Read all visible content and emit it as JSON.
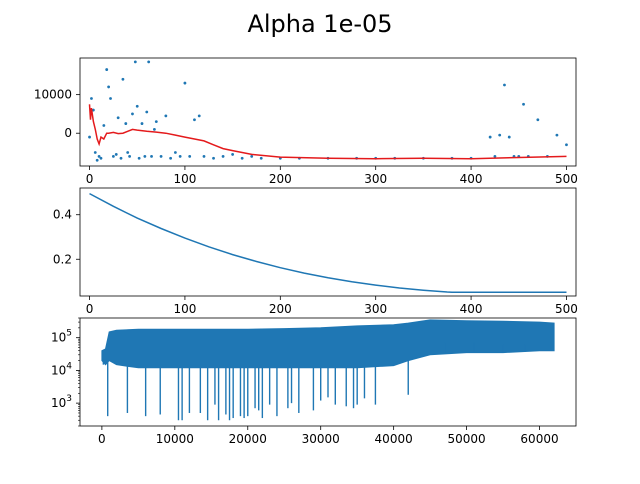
{
  "chart_data": [
    {
      "type": "scatter",
      "title": "Alpha 1e-05",
      "xlim": [
        -10,
        510
      ],
      "ylim": [
        -8500,
        19500
      ],
      "xticks": [
        0,
        100,
        200,
        300,
        400,
        500
      ],
      "yticks": [
        0,
        10000
      ],
      "ytick_labels": [
        "0",
        "10000"
      ],
      "series": [
        {
          "kind": "scatter",
          "color": "#1f77b4",
          "x": [
            0,
            2,
            4,
            6,
            8,
            10,
            12,
            15,
            18,
            20,
            22,
            25,
            28,
            30,
            33,
            35,
            38,
            40,
            42,
            45,
            48,
            50,
            52,
            55,
            58,
            60,
            62,
            65,
            68,
            70,
            75,
            80,
            85,
            90,
            95,
            100,
            105,
            110,
            115,
            120,
            130,
            140,
            150,
            160,
            170,
            180,
            200,
            220,
            250,
            280,
            300,
            320,
            350,
            380,
            400,
            420,
            425,
            430,
            435,
            440,
            445,
            450,
            455,
            460,
            470,
            480,
            490,
            500
          ],
          "y": [
            -1000,
            9000,
            6000,
            -5000,
            -7000,
            -6000,
            -6500,
            2000,
            16500,
            12000,
            9000,
            -6000,
            -5500,
            4000,
            -6500,
            14000,
            2500,
            -5000,
            -6000,
            5000,
            18500,
            7000,
            -6500,
            2500,
            -6000,
            5500,
            18500,
            -6000,
            1000,
            3000,
            -6000,
            4500,
            -6500,
            -5000,
            -6000,
            13000,
            -6000,
            3500,
            4500,
            -6000,
            -6500,
            -6000,
            -5500,
            -6500,
            -6000,
            -6500,
            -6500,
            -6500,
            -6500,
            -6500,
            -6500,
            -6500,
            -6500,
            -6500,
            -6500,
            -1000,
            -6000,
            -500,
            12500,
            -1000,
            -6000,
            -6000,
            7500,
            -6000,
            3500,
            -6000,
            -500,
            -3000
          ]
        },
        {
          "kind": "line",
          "color": "#e41a1c",
          "x": [
            0,
            1,
            2,
            4,
            6,
            8,
            10,
            12,
            15,
            18,
            20,
            25,
            30,
            35,
            40,
            45,
            50,
            60,
            70,
            80,
            90,
            100,
            110,
            120,
            130,
            140,
            150,
            170,
            200,
            250,
            300,
            350,
            400,
            450,
            500
          ],
          "y": [
            7500,
            3500,
            6500,
            3000,
            1000,
            -1500,
            -2800,
            -1000,
            -1500,
            0,
            0,
            200,
            -100,
            0,
            500,
            1000,
            800,
            500,
            300,
            0,
            -500,
            -1000,
            -1500,
            -2000,
            -3000,
            -4000,
            -4500,
            -5500,
            -6200,
            -6500,
            -6600,
            -6500,
            -6600,
            -6300,
            -6000
          ]
        }
      ]
    },
    {
      "type": "line",
      "xlim": [
        -10,
        510
      ],
      "ylim": [
        0.035,
        0.52
      ],
      "xticks": [
        0,
        100,
        200,
        300,
        400,
        500
      ],
      "yticks": [
        0.2,
        0.4
      ],
      "ytick_labels": [
        "0.2",
        "0.4"
      ],
      "series": [
        {
          "color": "#1f77b4",
          "x": [
            0,
            25,
            50,
            75,
            100,
            125,
            150,
            175,
            200,
            225,
            250,
            275,
            300,
            325,
            350,
            375,
            380,
            400,
            450,
            500
          ],
          "y": [
            0.495,
            0.438,
            0.385,
            0.338,
            0.295,
            0.256,
            0.221,
            0.19,
            0.162,
            0.138,
            0.117,
            0.099,
            0.084,
            0.071,
            0.061,
            0.053,
            0.052,
            0.052,
            0.052,
            0.052
          ]
        }
      ]
    },
    {
      "type": "line",
      "yscale": "log",
      "xlim": [
        -3000,
        65000
      ],
      "ylim": [
        200,
        400000
      ],
      "xticks": [
        0,
        10000,
        20000,
        30000,
        40000,
        50000,
        60000
      ],
      "yticks": [
        1000,
        10000,
        100000
      ],
      "series": [
        {
          "color": "#1f77b4",
          "band": {
            "x": [
              0,
              500,
              1000,
              2000,
              5000,
              10000,
              15000,
              20000,
              25000,
              30000,
              35000,
              40000,
              42000,
              45000,
              50000,
              55000,
              60000,
              62000
            ],
            "upper": [
              40000,
              45000,
              150000,
              170000,
              180000,
              180000,
              180000,
              180000,
              190000,
              200000,
              230000,
              250000,
              280000,
              350000,
              330000,
              320000,
              300000,
              280000
            ],
            "lower": [
              20000,
              15000,
              20000,
              15000,
              12000,
              12000,
              12000,
              12000,
              12000,
              12000,
              12000,
              14000,
              20000,
              30000,
              35000,
              35000,
              40000,
              40000
            ]
          },
          "spikes": [
            [
              200,
              15000
            ],
            [
              800,
              400
            ],
            [
              3500,
              500
            ],
            [
              6000,
              400
            ],
            [
              8000,
              450
            ],
            [
              10500,
              300
            ],
            [
              11000,
              300
            ],
            [
              12000,
              500
            ],
            [
              13500,
              500
            ],
            [
              14500,
              300
            ],
            [
              15500,
              900
            ],
            [
              16000,
              300
            ],
            [
              17000,
              450
            ],
            [
              17500,
              300
            ],
            [
              18000,
              350
            ],
            [
              19000,
              400
            ],
            [
              19500,
              350
            ],
            [
              20000,
              400
            ],
            [
              21000,
              700
            ],
            [
              21500,
              600
            ],
            [
              22000,
              350
            ],
            [
              23000,
              900
            ],
            [
              24000,
              400
            ],
            [
              25500,
              700
            ],
            [
              26000,
              1000
            ],
            [
              27000,
              500
            ],
            [
              29000,
              600
            ],
            [
              30000,
              1200
            ],
            [
              31000,
              1500
            ],
            [
              32000,
              900
            ],
            [
              33500,
              800
            ],
            [
              34500,
              700
            ],
            [
              35000,
              900
            ],
            [
              36000,
              1400
            ],
            [
              37500,
              900
            ],
            [
              42000,
              1800
            ],
            [
              47000,
              70000
            ],
            [
              51000,
              70000
            ],
            [
              55000,
              60000
            ],
            [
              58000,
              60000
            ]
          ]
        }
      ]
    }
  ]
}
